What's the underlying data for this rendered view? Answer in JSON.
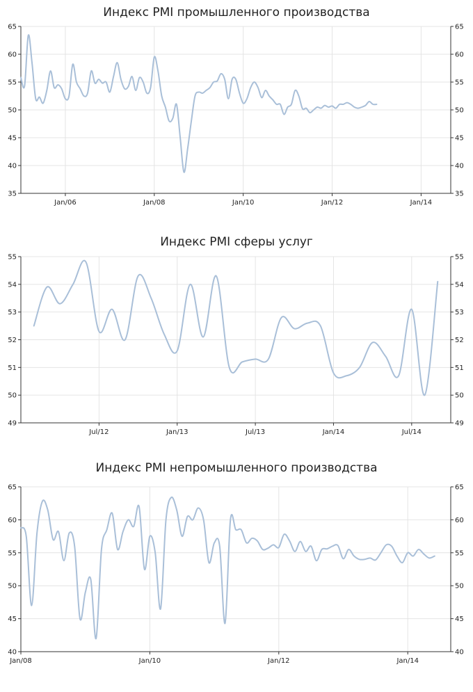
{
  "chart_data": [
    {
      "type": "line",
      "title": "Индекс PMI промышленного производства",
      "xlabel": "",
      "ylabel": "",
      "ylim": [
        35,
        65
      ],
      "yticks": [
        35,
        40,
        45,
        50,
        55,
        60,
        65
      ],
      "grid": true,
      "legend": "none",
      "x_range": [
        "2005-01",
        "2014-09"
      ],
      "x_ticks": [
        {
          "x": "2006-01",
          "label": "Jan/06"
        },
        {
          "x": "2008-01",
          "label": "Jan/08"
        },
        {
          "x": "2010-01",
          "label": "Jan/10"
        },
        {
          "x": "2012-01",
          "label": "Jan/12"
        },
        {
          "x": "2014-01",
          "label": "Jan/14"
        }
      ],
      "series": [
        {
          "color": "#a9bfd8",
          "points": [
            [
              "2005-01",
              55.8
            ],
            [
              "2005-02",
              54.3
            ],
            [
              "2005-03",
              63.4
            ],
            [
              "2005-04",
              58.5
            ],
            [
              "2005-05",
              52.0
            ],
            [
              "2005-06",
              52.3
            ],
            [
              "2005-07",
              51.2
            ],
            [
              "2005-08",
              53.5
            ],
            [
              "2005-09",
              57.0
            ],
            [
              "2005-10",
              54.0
            ],
            [
              "2005-11",
              54.5
            ],
            [
              "2005-12",
              53.8
            ],
            [
              "2006-01",
              52.0
            ],
            [
              "2006-02",
              52.5
            ],
            [
              "2006-03",
              58.2
            ],
            [
              "2006-04",
              55.0
            ],
            [
              "2006-05",
              53.8
            ],
            [
              "2006-06",
              52.5
            ],
            [
              "2006-07",
              53.0
            ],
            [
              "2006-08",
              57.0
            ],
            [
              "2006-09",
              54.8
            ],
            [
              "2006-10",
              55.5
            ],
            [
              "2006-11",
              54.8
            ],
            [
              "2006-12",
              55.0
            ],
            [
              "2007-01",
              53.2
            ],
            [
              "2007-02",
              56.0
            ],
            [
              "2007-03",
              58.5
            ],
            [
              "2007-04",
              55.5
            ],
            [
              "2007-05",
              53.8
            ],
            [
              "2007-06",
              54.2
            ],
            [
              "2007-07",
              56.0
            ],
            [
              "2007-08",
              53.5
            ],
            [
              "2007-09",
              55.8
            ],
            [
              "2007-10",
              55.0
            ],
            [
              "2007-11",
              53.0
            ],
            [
              "2007-12",
              54.0
            ],
            [
              "2008-01",
              59.5
            ],
            [
              "2008-02",
              57.0
            ],
            [
              "2008-03",
              52.5
            ],
            [
              "2008-04",
              50.5
            ],
            [
              "2008-05",
              48.0
            ],
            [
              "2008-06",
              48.5
            ],
            [
              "2008-07",
              51.0
            ],
            [
              "2008-08",
              45.0
            ],
            [
              "2008-09",
              38.8
            ],
            [
              "2008-10",
              43.0
            ],
            [
              "2008-11",
              48.0
            ],
            [
              "2008-12",
              52.5
            ],
            [
              "2009-01",
              53.2
            ],
            [
              "2009-02",
              53.0
            ],
            [
              "2009-03",
              53.5
            ],
            [
              "2009-04",
              54.0
            ],
            [
              "2009-05",
              55.0
            ],
            [
              "2009-06",
              55.2
            ],
            [
              "2009-07",
              56.5
            ],
            [
              "2009-08",
              55.5
            ],
            [
              "2009-09",
              52.0
            ],
            [
              "2009-10",
              55.5
            ],
            [
              "2009-11",
              55.5
            ],
            [
              "2009-12",
              53.0
            ],
            [
              "2010-01",
              51.2
            ],
            [
              "2010-02",
              52.0
            ],
            [
              "2010-03",
              54.0
            ],
            [
              "2010-04",
              55.0
            ],
            [
              "2010-05",
              54.0
            ],
            [
              "2010-06",
              52.2
            ],
            [
              "2010-07",
              53.5
            ],
            [
              "2010-08",
              52.5
            ],
            [
              "2010-09",
              51.8
            ],
            [
              "2010-10",
              51.0
            ],
            [
              "2010-11",
              51.0
            ],
            [
              "2010-12",
              49.2
            ],
            [
              "2011-01",
              50.5
            ],
            [
              "2011-02",
              51.0
            ],
            [
              "2011-03",
              53.5
            ],
            [
              "2011-04",
              52.5
            ],
            [
              "2011-05",
              50.2
            ],
            [
              "2011-06",
              50.3
            ],
            [
              "2011-07",
              49.5
            ],
            [
              "2011-08",
              50.0
            ],
            [
              "2011-09",
              50.5
            ],
            [
              "2011-10",
              50.3
            ],
            [
              "2011-11",
              50.8
            ],
            [
              "2011-12",
              50.5
            ],
            [
              "2012-01",
              50.7
            ],
            [
              "2012-02",
              50.3
            ],
            [
              "2012-03",
              51.0
            ],
            [
              "2012-04",
              51.0
            ],
            [
              "2012-05",
              51.3
            ],
            [
              "2012-06",
              51.0
            ],
            [
              "2012-07",
              50.5
            ],
            [
              "2012-08",
              50.3
            ],
            [
              "2012-09",
              50.5
            ],
            [
              "2012-10",
              50.8
            ],
            [
              "2012-11",
              51.5
            ],
            [
              "2012-12",
              51.0
            ],
            [
              "2013-01",
              51.0
            ]
          ]
        }
      ]
    },
    {
      "type": "line",
      "title": "Индекс PMI сферы услуг",
      "xlabel": "",
      "ylabel": "",
      "ylim": [
        49,
        55
      ],
      "yticks": [
        49,
        50,
        51,
        52,
        53,
        54,
        55
      ],
      "grid": true,
      "legend": "none",
      "x_range": [
        "2012-01",
        "2014-10"
      ],
      "x_ticks": [
        {
          "x": "2012-07",
          "label": "Jul/12"
        },
        {
          "x": "2013-01",
          "label": "Jan/13"
        },
        {
          "x": "2013-07",
          "label": "Jul/13"
        },
        {
          "x": "2014-01",
          "label": "Jan/14"
        },
        {
          "x": "2014-07",
          "label": "Jul/14"
        }
      ],
      "series": [
        {
          "color": "#a9bfd8",
          "points": [
            [
              "2012-02",
              52.5
            ],
            [
              "2012-03",
              53.9
            ],
            [
              "2012-04",
              53.3
            ],
            [
              "2012-05",
              54.0
            ],
            [
              "2012-06",
              54.8
            ],
            [
              "2012-07",
              52.3
            ],
            [
              "2012-08",
              53.1
            ],
            [
              "2012-09",
              52.0
            ],
            [
              "2012-10",
              54.3
            ],
            [
              "2012-11",
              53.5
            ],
            [
              "2012-12",
              52.2
            ],
            [
              "2013-01",
              51.6
            ],
            [
              "2013-02",
              54.0
            ],
            [
              "2013-03",
              52.1
            ],
            [
              "2013-04",
              54.3
            ],
            [
              "2013-05",
              51.0
            ],
            [
              "2013-06",
              51.2
            ],
            [
              "2013-07",
              51.3
            ],
            [
              "2013-08",
              51.3
            ],
            [
              "2013-09",
              52.8
            ],
            [
              "2013-10",
              52.4
            ],
            [
              "2013-11",
              52.6
            ],
            [
              "2013-12",
              52.5
            ],
            [
              "2014-01",
              50.8
            ],
            [
              "2014-02",
              50.7
            ],
            [
              "2014-03",
              51.0
            ],
            [
              "2014-04",
              51.9
            ],
            [
              "2014-05",
              51.4
            ],
            [
              "2014-06",
              50.7
            ],
            [
              "2014-07",
              53.1
            ],
            [
              "2014-08",
              50.0
            ],
            [
              "2014-09",
              54.1
            ]
          ]
        }
      ]
    },
    {
      "type": "line",
      "title": "Индекс PMI непромышленного производства",
      "xlabel": "",
      "ylabel": "",
      "ylim": [
        40,
        65
      ],
      "yticks": [
        40,
        45,
        50,
        55,
        60,
        65
      ],
      "grid": true,
      "legend": "none",
      "x_range": [
        "2008-01",
        "2014-09"
      ],
      "x_ticks": [
        {
          "x": "2008-01",
          "label": "Jan/08"
        },
        {
          "x": "2010-01",
          "label": "Jan/10"
        },
        {
          "x": "2012-01",
          "label": "Jan/12"
        },
        {
          "x": "2014-01",
          "label": "Jan/14"
        }
      ],
      "series": [
        {
          "color": "#a9bfd8",
          "points": [
            [
              "2008-01",
              58.8
            ],
            [
              "2008-02",
              57.5
            ],
            [
              "2008-03",
              47.0
            ],
            [
              "2008-04",
              58.0
            ],
            [
              "2008-05",
              62.8
            ],
            [
              "2008-06",
              61.5
            ],
            [
              "2008-07",
              57.0
            ],
            [
              "2008-08",
              58.2
            ],
            [
              "2008-09",
              53.8
            ],
            [
              "2008-10",
              58.0
            ],
            [
              "2008-11",
              56.0
            ],
            [
              "2008-12",
              45.0
            ],
            [
              "2009-01",
              49.0
            ],
            [
              "2009-02",
              51.0
            ],
            [
              "2009-03",
              42.0
            ],
            [
              "2009-04",
              55.5
            ],
            [
              "2009-05",
              58.5
            ],
            [
              "2009-06",
              61.0
            ],
            [
              "2009-07",
              55.5
            ],
            [
              "2009-08",
              58.2
            ],
            [
              "2009-09",
              60.0
            ],
            [
              "2009-10",
              59.0
            ],
            [
              "2009-11",
              62.0
            ],
            [
              "2009-12",
              52.5
            ],
            [
              "2010-01",
              57.5
            ],
            [
              "2010-02",
              55.0
            ],
            [
              "2010-03",
              46.5
            ],
            [
              "2010-04",
              60.0
            ],
            [
              "2010-05",
              63.4
            ],
            [
              "2010-06",
              61.5
            ],
            [
              "2010-07",
              57.5
            ],
            [
              "2010-08",
              60.5
            ],
            [
              "2010-09",
              60.0
            ],
            [
              "2010-10",
              61.8
            ],
            [
              "2010-11",
              60.0
            ],
            [
              "2010-12",
              53.5
            ],
            [
              "2011-01",
              56.5
            ],
            [
              "2011-02",
              56.0
            ],
            [
              "2011-03",
              44.3
            ],
            [
              "2011-04",
              60.0
            ],
            [
              "2011-05",
              58.5
            ],
            [
              "2011-06",
              58.5
            ],
            [
              "2011-07",
              56.5
            ],
            [
              "2011-08",
              57.2
            ],
            [
              "2011-09",
              56.8
            ],
            [
              "2011-10",
              55.5
            ],
            [
              "2011-11",
              55.7
            ],
            [
              "2011-12",
              56.2
            ],
            [
              "2012-01",
              55.8
            ],
            [
              "2012-02",
              57.8
            ],
            [
              "2012-03",
              56.8
            ],
            [
              "2012-04",
              55.2
            ],
            [
              "2012-05",
              56.7
            ],
            [
              "2012-06",
              55.2
            ],
            [
              "2012-07",
              56.0
            ],
            [
              "2012-08",
              53.8
            ],
            [
              "2012-09",
              55.5
            ],
            [
              "2012-10",
              55.6
            ],
            [
              "2012-11",
              56.0
            ],
            [
              "2012-12",
              56.1
            ],
            [
              "2013-01",
              54.1
            ],
            [
              "2013-02",
              55.5
            ],
            [
              "2013-03",
              54.5
            ],
            [
              "2013-04",
              54.0
            ],
            [
              "2013-05",
              54.0
            ],
            [
              "2013-06",
              54.2
            ],
            [
              "2013-07",
              53.9
            ],
            [
              "2013-08",
              55.0
            ],
            [
              "2013-09",
              56.2
            ],
            [
              "2013-10",
              56.0
            ],
            [
              "2013-11",
              54.5
            ],
            [
              "2013-12",
              53.5
            ],
            [
              "2014-01",
              55.0
            ],
            [
              "2014-02",
              54.5
            ],
            [
              "2014-03",
              55.5
            ],
            [
              "2014-04",
              54.8
            ],
            [
              "2014-05",
              54.2
            ],
            [
              "2014-06",
              54.5
            ]
          ]
        }
      ]
    }
  ]
}
